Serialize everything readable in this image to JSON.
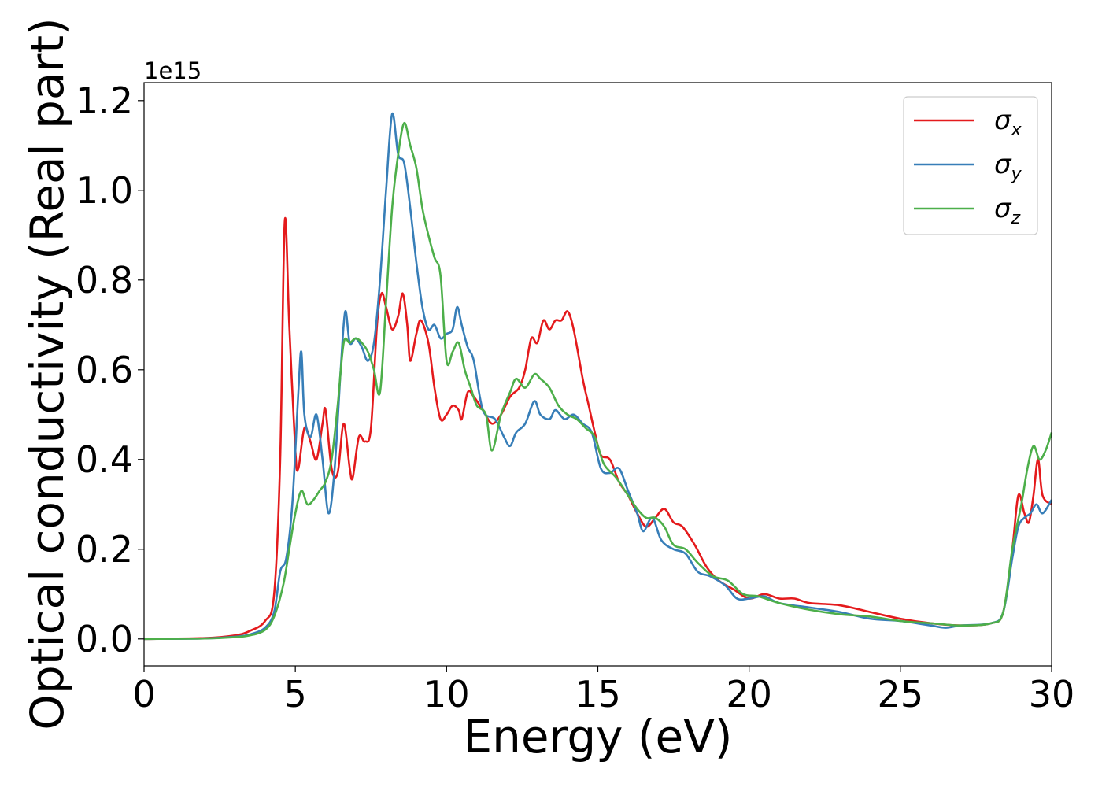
{
  "chart_data": {
    "type": "line",
    "title": "",
    "xlabel": "Energy (eV)",
    "ylabel": "Optical conductivity (Real part)",
    "y_offset_text": "1e15",
    "xlim": [
      0,
      30
    ],
    "ylim": [
      -0.06,
      1.24
    ],
    "y_scale": 1000000000000000.0,
    "x_ticks": [
      0,
      5,
      10,
      15,
      20,
      25,
      30
    ],
    "x_tick_labels": [
      "0",
      "5",
      "10",
      "15",
      "20",
      "25",
      "30"
    ],
    "y_ticks": [
      0.0,
      0.2,
      0.4,
      0.6,
      0.8,
      1.0,
      1.2
    ],
    "y_tick_labels": [
      "0.0",
      "0.2",
      "0.4",
      "0.6",
      "0.8",
      "1.0",
      "1.2"
    ],
    "grid": false,
    "legend_position": "top-right",
    "series": [
      {
        "name": "σx",
        "symbol": "σ",
        "subscript": "x",
        "color": "#e41a1c",
        "points": [
          [
            0,
            0
          ],
          [
            2,
            0.002
          ],
          [
            3,
            0.008
          ],
          [
            3.5,
            0.018
          ],
          [
            4,
            0.04
          ],
          [
            4.3,
            0.1
          ],
          [
            4.5,
            0.4
          ],
          [
            4.65,
            0.93
          ],
          [
            4.8,
            0.7
          ],
          [
            5.0,
            0.42
          ],
          [
            5.1,
            0.38
          ],
          [
            5.3,
            0.47
          ],
          [
            5.5,
            0.44
          ],
          [
            5.7,
            0.4
          ],
          [
            5.9,
            0.48
          ],
          [
            6.0,
            0.51
          ],
          [
            6.2,
            0.38
          ],
          [
            6.4,
            0.37
          ],
          [
            6.6,
            0.48
          ],
          [
            6.8,
            0.38
          ],
          [
            6.9,
            0.36
          ],
          [
            7.1,
            0.45
          ],
          [
            7.3,
            0.44
          ],
          [
            7.5,
            0.47
          ],
          [
            7.7,
            0.7
          ],
          [
            7.85,
            0.77
          ],
          [
            8.0,
            0.74
          ],
          [
            8.2,
            0.69
          ],
          [
            8.4,
            0.72
          ],
          [
            8.55,
            0.77
          ],
          [
            8.7,
            0.7
          ],
          [
            8.8,
            0.62
          ],
          [
            9.0,
            0.68
          ],
          [
            9.15,
            0.71
          ],
          [
            9.4,
            0.66
          ],
          [
            9.6,
            0.56
          ],
          [
            9.8,
            0.49
          ],
          [
            10.0,
            0.5
          ],
          [
            10.2,
            0.52
          ],
          [
            10.4,
            0.51
          ],
          [
            10.5,
            0.49
          ],
          [
            10.7,
            0.55
          ],
          [
            10.9,
            0.54
          ],
          [
            11.2,
            0.51
          ],
          [
            11.5,
            0.48
          ],
          [
            11.8,
            0.5
          ],
          [
            12.1,
            0.54
          ],
          [
            12.4,
            0.56
          ],
          [
            12.6,
            0.6
          ],
          [
            12.8,
            0.67
          ],
          [
            13.0,
            0.66
          ],
          [
            13.2,
            0.71
          ],
          [
            13.4,
            0.69
          ],
          [
            13.6,
            0.71
          ],
          [
            13.8,
            0.71
          ],
          [
            14.0,
            0.73
          ],
          [
            14.2,
            0.69
          ],
          [
            14.5,
            0.58
          ],
          [
            14.7,
            0.52
          ],
          [
            14.9,
            0.46
          ],
          [
            15.1,
            0.41
          ],
          [
            15.4,
            0.4
          ],
          [
            15.7,
            0.35
          ],
          [
            16.0,
            0.32
          ],
          [
            16.3,
            0.28
          ],
          [
            16.6,
            0.25
          ],
          [
            16.9,
            0.27
          ],
          [
            17.2,
            0.29
          ],
          [
            17.5,
            0.26
          ],
          [
            17.8,
            0.25
          ],
          [
            18.2,
            0.21
          ],
          [
            18.6,
            0.16
          ],
          [
            19.0,
            0.13
          ],
          [
            19.5,
            0.11
          ],
          [
            20.0,
            0.09
          ],
          [
            20.5,
            0.1
          ],
          [
            21.0,
            0.09
          ],
          [
            21.5,
            0.09
          ],
          [
            22.0,
            0.08
          ],
          [
            23.0,
            0.075
          ],
          [
            24.0,
            0.06
          ],
          [
            25.0,
            0.045
          ],
          [
            26.0,
            0.035
          ],
          [
            27.0,
            0.03
          ],
          [
            28.0,
            0.035
          ],
          [
            28.4,
            0.06
          ],
          [
            28.7,
            0.2
          ],
          [
            28.9,
            0.32
          ],
          [
            29.1,
            0.28
          ],
          [
            29.25,
            0.26
          ],
          [
            29.4,
            0.32
          ],
          [
            29.55,
            0.4
          ],
          [
            29.7,
            0.32
          ],
          [
            30.0,
            0.3
          ]
        ]
      },
      {
        "name": "σy",
        "symbol": "σ",
        "subscript": "y",
        "color": "#377eb8",
        "points": [
          [
            0,
            0
          ],
          [
            2,
            0.001
          ],
          [
            3,
            0.005
          ],
          [
            3.5,
            0.01
          ],
          [
            4,
            0.025
          ],
          [
            4.3,
            0.06
          ],
          [
            4.5,
            0.15
          ],
          [
            4.7,
            0.18
          ],
          [
            4.9,
            0.3
          ],
          [
            5.1,
            0.55
          ],
          [
            5.2,
            0.64
          ],
          [
            5.3,
            0.5
          ],
          [
            5.5,
            0.45
          ],
          [
            5.7,
            0.5
          ],
          [
            5.9,
            0.4
          ],
          [
            6.1,
            0.28
          ],
          [
            6.3,
            0.38
          ],
          [
            6.5,
            0.6
          ],
          [
            6.65,
            0.73
          ],
          [
            6.8,
            0.66
          ],
          [
            7.0,
            0.67
          ],
          [
            7.2,
            0.65
          ],
          [
            7.4,
            0.62
          ],
          [
            7.6,
            0.66
          ],
          [
            7.8,
            0.8
          ],
          [
            8.0,
            1.0
          ],
          [
            8.2,
            1.17
          ],
          [
            8.4,
            1.08
          ],
          [
            8.6,
            1.06
          ],
          [
            8.8,
            0.96
          ],
          [
            9.0,
            0.84
          ],
          [
            9.2,
            0.74
          ],
          [
            9.4,
            0.69
          ],
          [
            9.6,
            0.7
          ],
          [
            9.8,
            0.67
          ],
          [
            10.0,
            0.68
          ],
          [
            10.2,
            0.69
          ],
          [
            10.35,
            0.74
          ],
          [
            10.5,
            0.7
          ],
          [
            10.7,
            0.65
          ],
          [
            10.9,
            0.62
          ],
          [
            11.2,
            0.51
          ],
          [
            11.6,
            0.49
          ],
          [
            11.9,
            0.45
          ],
          [
            12.1,
            0.43
          ],
          [
            12.3,
            0.46
          ],
          [
            12.6,
            0.48
          ],
          [
            12.9,
            0.53
          ],
          [
            13.1,
            0.5
          ],
          [
            13.4,
            0.49
          ],
          [
            13.6,
            0.51
          ],
          [
            13.9,
            0.49
          ],
          [
            14.2,
            0.5
          ],
          [
            14.5,
            0.48
          ],
          [
            14.8,
            0.46
          ],
          [
            15.1,
            0.38
          ],
          [
            15.4,
            0.37
          ],
          [
            15.7,
            0.38
          ],
          [
            16.0,
            0.33
          ],
          [
            16.3,
            0.28
          ],
          [
            16.5,
            0.24
          ],
          [
            16.8,
            0.27
          ],
          [
            17.1,
            0.22
          ],
          [
            17.5,
            0.2
          ],
          [
            17.9,
            0.19
          ],
          [
            18.3,
            0.15
          ],
          [
            18.7,
            0.14
          ],
          [
            19.2,
            0.12
          ],
          [
            19.6,
            0.09
          ],
          [
            20.0,
            0.09
          ],
          [
            20.5,
            0.095
          ],
          [
            21.0,
            0.08
          ],
          [
            22.0,
            0.07
          ],
          [
            23.0,
            0.06
          ],
          [
            24.0,
            0.045
          ],
          [
            25.0,
            0.04
          ],
          [
            26.0,
            0.03
          ],
          [
            26.5,
            0.025
          ],
          [
            27.0,
            0.03
          ],
          [
            28.0,
            0.035
          ],
          [
            28.4,
            0.06
          ],
          [
            28.7,
            0.18
          ],
          [
            28.9,
            0.25
          ],
          [
            29.1,
            0.27
          ],
          [
            29.3,
            0.28
          ],
          [
            29.5,
            0.3
          ],
          [
            29.7,
            0.28
          ],
          [
            30.0,
            0.31
          ]
        ]
      },
      {
        "name": "σz",
        "symbol": "σ",
        "subscript": "z",
        "color": "#4daf4a",
        "points": [
          [
            0,
            0
          ],
          [
            2,
            0.001
          ],
          [
            3,
            0.004
          ],
          [
            3.5,
            0.008
          ],
          [
            4,
            0.02
          ],
          [
            4.3,
            0.05
          ],
          [
            4.6,
            0.12
          ],
          [
            4.8,
            0.2
          ],
          [
            5.0,
            0.28
          ],
          [
            5.2,
            0.33
          ],
          [
            5.4,
            0.3
          ],
          [
            5.6,
            0.31
          ],
          [
            5.8,
            0.33
          ],
          [
            6.0,
            0.35
          ],
          [
            6.2,
            0.4
          ],
          [
            6.4,
            0.52
          ],
          [
            6.6,
            0.66
          ],
          [
            6.8,
            0.66
          ],
          [
            7.0,
            0.67
          ],
          [
            7.2,
            0.66
          ],
          [
            7.4,
            0.64
          ],
          [
            7.6,
            0.6
          ],
          [
            7.8,
            0.55
          ],
          [
            8.0,
            0.75
          ],
          [
            8.2,
            0.96
          ],
          [
            8.4,
            1.08
          ],
          [
            8.6,
            1.15
          ],
          [
            8.8,
            1.1
          ],
          [
            9.0,
            1.05
          ],
          [
            9.2,
            0.96
          ],
          [
            9.4,
            0.9
          ],
          [
            9.6,
            0.85
          ],
          [
            9.8,
            0.81
          ],
          [
            10.0,
            0.62
          ],
          [
            10.2,
            0.64
          ],
          [
            10.4,
            0.66
          ],
          [
            10.6,
            0.6
          ],
          [
            10.8,
            0.56
          ],
          [
            11.0,
            0.52
          ],
          [
            11.3,
            0.5
          ],
          [
            11.5,
            0.42
          ],
          [
            11.8,
            0.5
          ],
          [
            12.1,
            0.55
          ],
          [
            12.3,
            0.58
          ],
          [
            12.6,
            0.56
          ],
          [
            12.9,
            0.59
          ],
          [
            13.1,
            0.58
          ],
          [
            13.4,
            0.56
          ],
          [
            13.7,
            0.52
          ],
          [
            14.0,
            0.5
          ],
          [
            14.3,
            0.49
          ],
          [
            14.6,
            0.47
          ],
          [
            14.9,
            0.45
          ],
          [
            15.2,
            0.39
          ],
          [
            15.6,
            0.36
          ],
          [
            16.0,
            0.32
          ],
          [
            16.3,
            0.29
          ],
          [
            16.6,
            0.27
          ],
          [
            16.9,
            0.27
          ],
          [
            17.2,
            0.25
          ],
          [
            17.5,
            0.21
          ],
          [
            17.9,
            0.2
          ],
          [
            18.3,
            0.17
          ],
          [
            18.8,
            0.14
          ],
          [
            19.3,
            0.13
          ],
          [
            19.8,
            0.1
          ],
          [
            20.3,
            0.095
          ],
          [
            21.0,
            0.08
          ],
          [
            22.0,
            0.065
          ],
          [
            23.0,
            0.055
          ],
          [
            24.0,
            0.05
          ],
          [
            25.0,
            0.04
          ],
          [
            26.0,
            0.035
          ],
          [
            27.0,
            0.03
          ],
          [
            28.0,
            0.035
          ],
          [
            28.4,
            0.06
          ],
          [
            28.7,
            0.2
          ],
          [
            29.0,
            0.3
          ],
          [
            29.2,
            0.38
          ],
          [
            29.4,
            0.43
          ],
          [
            29.6,
            0.4
          ],
          [
            29.8,
            0.42
          ],
          [
            30.0,
            0.46
          ]
        ]
      }
    ]
  }
}
